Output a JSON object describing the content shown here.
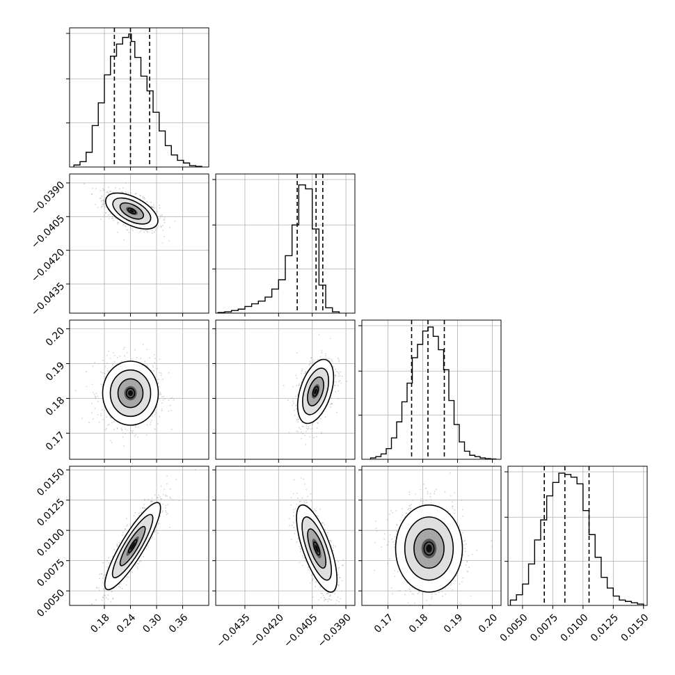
{
  "chart_data": {
    "type": "corner",
    "grid": true,
    "colors": {
      "line": "#000000",
      "density": "#000000",
      "points": "#9a9a9a",
      "grid": "#b0b0b0"
    },
    "parameters": [
      {
        "ticks": [
          0.18,
          0.24,
          0.3,
          0.36
        ],
        "tick_labels": [
          "0.18",
          "0.24",
          "0.30",
          "0.36"
        ],
        "range": [
          0.1,
          0.42
        ]
      },
      {
        "ticks": [
          -0.0435,
          -0.042,
          -0.0405,
          -0.039
        ],
        "tick_labels": [
          "−0.0435",
          "−0.0420",
          "−0.0405",
          "−0.0390"
        ],
        "range": [
          -0.0448,
          -0.0386
        ]
      },
      {
        "ticks": [
          0.17,
          0.18,
          0.19,
          0.2
        ],
        "tick_labels": [
          "0.17",
          "0.18",
          "0.19",
          "0.20"
        ],
        "range": [
          0.1625,
          0.2025
        ]
      },
      {
        "ticks": [
          0.005,
          0.0075,
          0.01,
          0.0125,
          0.015
        ],
        "tick_labels": [
          "0.0050",
          "0.0075",
          "0.0100",
          "0.0125",
          "0.0150"
        ],
        "range": [
          0.0038,
          0.0153
        ]
      }
    ],
    "marginals": [
      {
        "quantiles": [
          0.203,
          0.24,
          0.284
        ],
        "bin_edges": [
          0.11,
          0.124,
          0.138,
          0.152,
          0.166,
          0.18,
          0.194,
          0.208,
          0.222,
          0.236,
          0.242,
          0.25,
          0.264,
          0.278,
          0.292,
          0.306,
          0.32,
          0.334,
          0.348,
          0.362,
          0.376,
          0.39,
          0.404
        ],
        "counts": [
          0.015,
          0.04,
          0.11,
          0.31,
          0.48,
          0.69,
          0.83,
          0.92,
          0.97,
          0.995,
          0.94,
          0.82,
          0.68,
          0.57,
          0.41,
          0.27,
          0.16,
          0.09,
          0.05,
          0.03,
          0.01,
          0.005
        ]
      },
      {
        "quantiles": [
          -0.04117,
          -0.04033,
          -0.04003
        ],
        "bin_edges": [
          -0.0447,
          -0.0444,
          -0.0441,
          -0.0438,
          -0.0435,
          -0.0432,
          -0.0429,
          -0.0426,
          -0.0423,
          -0.042,
          -0.0417,
          -0.0414,
          -0.0411,
          -0.0408,
          -0.0405,
          -0.0402,
          -0.0399,
          -0.0396,
          -0.0393
        ],
        "counts": [
          0.005,
          0.01,
          0.02,
          0.03,
          0.05,
          0.07,
          0.09,
          0.12,
          0.18,
          0.25,
          0.43,
          0.66,
          0.96,
          0.93,
          0.63,
          0.21,
          0.04,
          0.01
        ]
      },
      {
        "quantiles": [
          0.1768,
          0.1815,
          0.1862
        ],
        "bin_edges": [
          0.165,
          0.1665,
          0.168,
          0.1695,
          0.171,
          0.1725,
          0.174,
          0.1755,
          0.177,
          0.1785,
          0.18,
          0.1815,
          0.183,
          0.1845,
          0.186,
          0.1875,
          0.189,
          0.1905,
          0.192,
          0.1935,
          0.195,
          0.1965,
          0.198,
          0.1995,
          0.201
        ],
        "counts": [
          0.01,
          0.02,
          0.04,
          0.08,
          0.16,
          0.28,
          0.43,
          0.57,
          0.76,
          0.86,
          0.96,
          0.99,
          0.92,
          0.82,
          0.67,
          0.44,
          0.26,
          0.13,
          0.06,
          0.03,
          0.02,
          0.01,
          0.005,
          0.002
        ]
      },
      {
        "quantiles": [
          0.0068,
          0.0085,
          0.0105
        ],
        "bin_edges": [
          0.004,
          0.0045,
          0.005,
          0.0055,
          0.006,
          0.0065,
          0.007,
          0.0075,
          0.008,
          0.0085,
          0.009,
          0.0095,
          0.01,
          0.0105,
          0.011,
          0.0115,
          0.012,
          0.0125,
          0.013,
          0.0135,
          0.014,
          0.0145,
          0.015
        ],
        "counts": [
          0.04,
          0.08,
          0.16,
          0.31,
          0.49,
          0.64,
          0.82,
          0.92,
          0.99,
          0.98,
          0.96,
          0.91,
          0.71,
          0.53,
          0.36,
          0.21,
          0.13,
          0.07,
          0.04,
          0.03,
          0.02,
          0.01
        ]
      }
    ],
    "joints": [
      {
        "row": 1,
        "col": 0,
        "mean": [
          0.243,
          -0.04025
        ],
        "sd": [
          0.03,
          0.0004
        ],
        "corr": -0.55
      },
      {
        "row": 2,
        "col": 0,
        "mean": [
          0.24,
          0.1815
        ],
        "sd": [
          0.032,
          0.0046
        ],
        "corr": 0.0
      },
      {
        "row": 2,
        "col": 1,
        "mean": [
          -0.04035,
          0.182
        ],
        "sd": [
          0.0004,
          0.0046
        ],
        "corr": 0.45
      },
      {
        "row": 3,
        "col": 0,
        "mean": [
          0.245,
          0.0087
        ],
        "sd": [
          0.032,
          0.0018
        ],
        "corr": 0.88
      },
      {
        "row": 3,
        "col": 1,
        "mean": [
          -0.0403,
          0.0085
        ],
        "sd": [
          0.00045,
          0.0018
        ],
        "corr": -0.7
      },
      {
        "row": 3,
        "col": 2,
        "mean": [
          0.1818,
          0.0085
        ],
        "sd": [
          0.0048,
          0.0018
        ],
        "corr": 0.0
      }
    ]
  }
}
